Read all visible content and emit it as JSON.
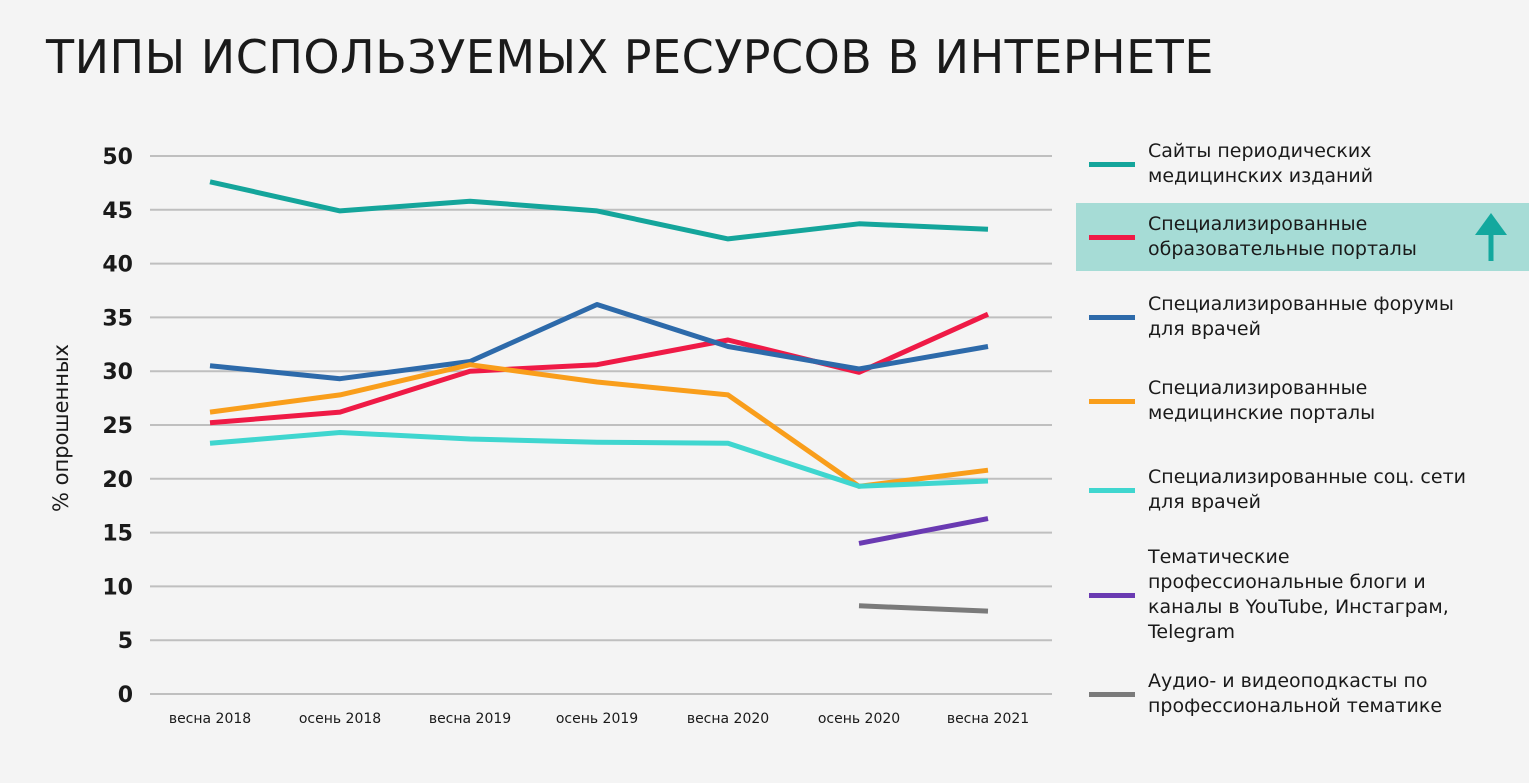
{
  "title": "ТИПЫ ИСПОЛЬЗУЕМЫХ РЕСУРСОВ В ИНТЕРНЕТЕ",
  "colors": {
    "background": "#f4f4f4",
    "grid": "#bfbfbf",
    "highlight": "#a6dcd6",
    "arrow": "#13a89e"
  },
  "chart_data": {
    "type": "line",
    "ylabel": "% опрошенных",
    "xlabel": "",
    "ylim": [
      0,
      50
    ],
    "yticks": [
      0,
      5,
      10,
      15,
      20,
      25,
      30,
      35,
      40,
      45,
      50
    ],
    "categories": [
      "весна 2018",
      "осень 2018",
      "весна 2019",
      "осень 2019",
      "весна 2020",
      "осень 2020",
      "весна 2021"
    ],
    "grid": true,
    "legend_position": "right",
    "series": [
      {
        "name": "Сайты периодических\nмедицинских изданий",
        "color": "#14a59b",
        "values": [
          47.6,
          44.9,
          45.8,
          44.9,
          42.3,
          43.7,
          43.2
        ]
      },
      {
        "name": "Специализированные\nобразовательные порталы",
        "color": "#ef1a46",
        "values": [
          25.2,
          26.2,
          30.0,
          30.6,
          32.9,
          29.9,
          35.3
        ],
        "highlighted": true,
        "trend_icon": "up-arrow-icon"
      },
      {
        "name": "Специализированные форумы\nдля врачей",
        "color": "#2d6aaa",
        "values": [
          30.5,
          29.3,
          30.9,
          36.2,
          32.3,
          30.2,
          32.3
        ]
      },
      {
        "name": "Специализированные\nмедицинские порталы",
        "color": "#f99e1b",
        "values": [
          26.2,
          27.8,
          30.6,
          29.0,
          27.8,
          19.3,
          20.8
        ]
      },
      {
        "name": "Специализированные соц. сети\nдля врачей",
        "color": "#3fd6cf",
        "values": [
          23.3,
          24.3,
          23.7,
          23.4,
          23.3,
          19.3,
          19.8
        ]
      },
      {
        "name": "Тематические\nпрофессиональные блоги и\nканалы в YouTube, Инстаграм,\nTelegram",
        "color": "#6a3ab2",
        "values": [
          null,
          null,
          null,
          null,
          null,
          14.0,
          16.3
        ]
      },
      {
        "name": "Аудио- и видеоподкасты по\nпрофессиональной тематике",
        "color": "#7a7a7a",
        "values": [
          null,
          null,
          null,
          null,
          null,
          8.2,
          7.7
        ]
      }
    ]
  }
}
